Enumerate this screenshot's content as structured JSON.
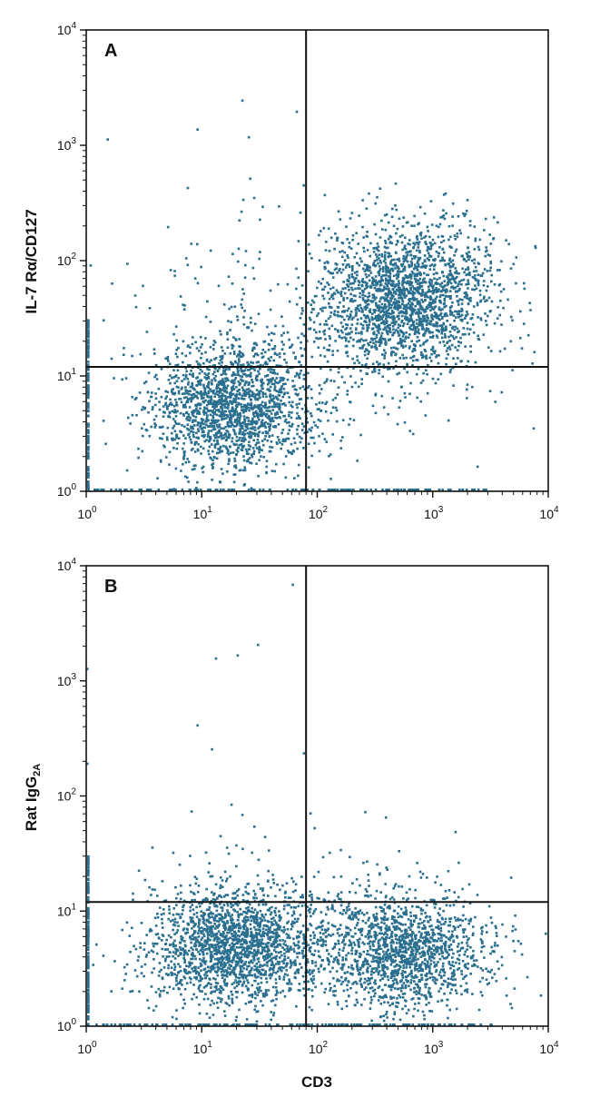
{
  "chart_data": [
    {
      "type": "scatter",
      "panel_label": "A",
      "ylabel": "IL-7 Rα/CD127",
      "xlabel": "",
      "xscale": "log",
      "yscale": "log",
      "xlim": [
        1,
        10000
      ],
      "ylim": [
        1,
        10000
      ],
      "x_ticks": [
        {
          "base": "10",
          "exp": "0",
          "value": 1
        },
        {
          "base": "10",
          "exp": "1",
          "value": 10
        },
        {
          "base": "10",
          "exp": "2",
          "value": 100
        },
        {
          "base": "10",
          "exp": "3",
          "value": 1000
        },
        {
          "base": "10",
          "exp": "4",
          "value": 10000
        }
      ],
      "y_ticks": [
        {
          "base": "10",
          "exp": "0",
          "value": 1
        },
        {
          "base": "10",
          "exp": "1",
          "value": 10
        },
        {
          "base": "10",
          "exp": "2",
          "value": 100
        },
        {
          "base": "10",
          "exp": "3",
          "value": 1000
        },
        {
          "base": "10",
          "exp": "4",
          "value": 10000
        }
      ],
      "quadrant_gates": {
        "x": 80,
        "y": 12
      },
      "point_color": "#2a6f8f",
      "clusters": [
        {
          "center": [
            18,
            5.5
          ],
          "spread_log10": [
            0.35,
            0.27
          ],
          "count": 1700
        },
        {
          "center": [
            600,
            50
          ],
          "spread_log10": [
            0.36,
            0.3
          ],
          "count": 1900
        },
        {
          "center": [
            100,
            20
          ],
          "spread_log10": [
            0.75,
            0.5
          ],
          "count": 450
        }
      ],
      "outliers": [
        [
          9,
          1400
        ],
        [
          25,
          1200
        ],
        [
          22,
          2500
        ],
        [
          65,
          2000
        ],
        [
          1.5,
          1150
        ],
        [
          33,
          300
        ],
        [
          5,
          200
        ]
      ]
    },
    {
      "type": "scatter",
      "panel_label": "B",
      "ylabel": "Rat IgG",
      "ylabel_subscript": "2A",
      "xlabel": "CD3",
      "xscale": "log",
      "yscale": "log",
      "xlim": [
        1,
        10000
      ],
      "ylim": [
        1,
        10000
      ],
      "x_ticks": [
        {
          "base": "10",
          "exp": "0",
          "value": 1
        },
        {
          "base": "10",
          "exp": "1",
          "value": 10
        },
        {
          "base": "10",
          "exp": "2",
          "value": 100
        },
        {
          "base": "10",
          "exp": "3",
          "value": 1000
        },
        {
          "base": "10",
          "exp": "4",
          "value": 10000
        }
      ],
      "y_ticks": [
        {
          "base": "10",
          "exp": "0",
          "value": 1
        },
        {
          "base": "10",
          "exp": "1",
          "value": 10
        },
        {
          "base": "10",
          "exp": "2",
          "value": 100
        },
        {
          "base": "10",
          "exp": "3",
          "value": 1000
        },
        {
          "base": "10",
          "exp": "4",
          "value": 10000
        }
      ],
      "quadrant_gates": {
        "x": 80,
        "y": 12
      },
      "point_color": "#2a6f8f",
      "clusters": [
        {
          "center": [
            18,
            5
          ],
          "spread_log10": [
            0.35,
            0.25
          ],
          "count": 1700
        },
        {
          "center": [
            500,
            4.5
          ],
          "spread_log10": [
            0.38,
            0.25
          ],
          "count": 1500
        },
        {
          "center": [
            60,
            8
          ],
          "spread_log10": [
            0.7,
            0.38
          ],
          "count": 280
        }
      ],
      "outliers": [
        [
          60,
          7000
        ],
        [
          13,
          1600
        ],
        [
          30,
          2100
        ],
        [
          20,
          1700
        ],
        [
          9,
          420
        ],
        [
          12,
          260
        ],
        [
          75,
          240
        ],
        [
          8,
          75
        ],
        [
          22,
          70
        ],
        [
          1,
          1300
        ],
        [
          1,
          195
        ]
      ]
    }
  ]
}
